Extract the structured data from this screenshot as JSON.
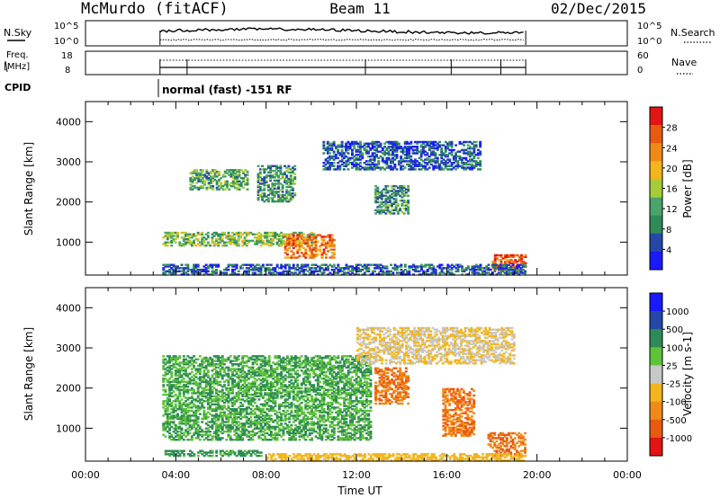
{
  "header": {
    "station": "McMurdo (fitACF)",
    "beam": "Beam 11",
    "date": "02/Dec/2015"
  },
  "top_panels": {
    "nsky_label": "N.Sky",
    "freq_label_1": "Freq.",
    "freq_label_2": "[MHz]",
    "cpid_label": "CPID",
    "nsearch_label": "N.Search",
    "nave_label": "Nave",
    "nsky_ticks": [
      "10^5",
      "10^0"
    ],
    "nsearch_ticks": [
      "10^5",
      "10^0"
    ],
    "freq_ticks": [
      "18",
      "8"
    ],
    "nave_ticks": [
      "60",
      "0"
    ],
    "cpid_text": "normal (fast) -151 RF"
  },
  "colors": {
    "power": [
      "#1a1aff",
      "#2548a8",
      "#2e8b57",
      "#4aa36a",
      "#a7cc3a",
      "#f2b51b",
      "#f08a16",
      "#e85a10",
      "#e21414"
    ],
    "velocity": [
      "#1a1aff",
      "#2548a8",
      "#2e8b57",
      "#5ec23a",
      "#c8c8c8",
      "#f2b51b",
      "#f08a16",
      "#e85a10",
      "#e21414"
    ]
  },
  "chart_data": [
    {
      "type": "heatmap",
      "name": "power",
      "ylabel": "Slant Range [km]",
      "xlim": [
        0,
        24
      ],
      "ylim": [
        180,
        4500
      ],
      "yticks": [
        "1000",
        "2000",
        "3000",
        "4000"
      ],
      "colorbar_label": "Power [dB]",
      "colorbar_ticks": [
        "4",
        "8",
        "12",
        "16",
        "20",
        "24",
        "28"
      ],
      "colorbar_range": [
        0,
        32
      ],
      "data_window_hours": [
        3.3,
        19.5
      ],
      "regions": [
        {
          "t": [
            3.4,
            10.2
          ],
          "r": [
            900,
            1250
          ],
          "level": 14
        },
        {
          "t": [
            4.6,
            7.2
          ],
          "r": [
            2300,
            2800
          ],
          "level": 12
        },
        {
          "t": [
            7.6,
            9.3
          ],
          "r": [
            2000,
            2900
          ],
          "level": 10
        },
        {
          "t": [
            8.8,
            11.0
          ],
          "r": [
            600,
            1200
          ],
          "level": 24
        },
        {
          "t": [
            12.8,
            14.3
          ],
          "r": [
            1700,
            2400
          ],
          "level": 10
        },
        {
          "t": [
            18.0,
            19.5
          ],
          "r": [
            300,
            700
          ],
          "level": 26
        },
        {
          "t": [
            3.4,
            19.5
          ],
          "r": [
            180,
            450
          ],
          "level": 6
        },
        {
          "t": [
            10.5,
            17.5
          ],
          "r": [
            2800,
            3500
          ],
          "level": 6
        }
      ]
    },
    {
      "type": "heatmap",
      "name": "velocity",
      "xlabel": "Time UT",
      "ylabel": "Slant Range [km]",
      "xlim": [
        0,
        24
      ],
      "ylim": [
        180,
        4500
      ],
      "xticks": [
        "00:00",
        "04:00",
        "08:00",
        "12:00",
        "16:00",
        "20:00",
        "00:00"
      ],
      "yticks": [
        "1000",
        "2000",
        "3000",
        "4000"
      ],
      "colorbar_label": "Velocity [m s-1]",
      "colorbar_ticks": [
        "1000",
        "500",
        "100",
        "25",
        "-25",
        "-100",
        "-500",
        "-1000"
      ],
      "data_window_hours": [
        3.3,
        19.5
      ],
      "regions": [
        {
          "t": [
            3.4,
            12.6
          ],
          "r": [
            700,
            2800
          ],
          "level": 100
        },
        {
          "t": [
            3.5,
            7.8
          ],
          "r": [
            300,
            450
          ],
          "level": 150
        },
        {
          "t": [
            12.8,
            14.3
          ],
          "r": [
            1600,
            2500
          ],
          "level": -500
        },
        {
          "t": [
            15.8,
            17.2
          ],
          "r": [
            800,
            2000
          ],
          "level": -500
        },
        {
          "t": [
            17.8,
            19.5
          ],
          "r": [
            300,
            900
          ],
          "level": -500
        },
        {
          "t": [
            8.0,
            19.5
          ],
          "r": [
            180,
            350
          ],
          "level": -50
        },
        {
          "t": [
            12.0,
            19.0
          ],
          "r": [
            2600,
            3500
          ],
          "level": -25
        }
      ]
    }
  ]
}
